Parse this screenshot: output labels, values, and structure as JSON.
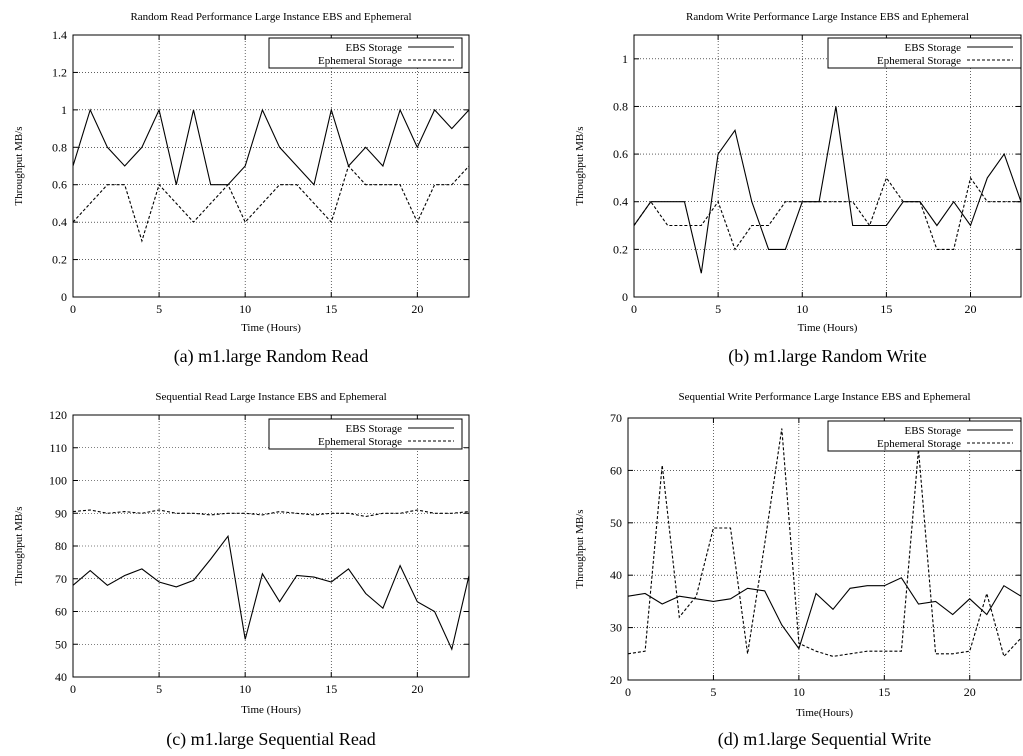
{
  "chart_data": [
    {
      "type": "line",
      "title": "Random Read Performance Large Instance EBS and Ephemeral",
      "xlabel": "Time (Hours)",
      "ylabel": "Throughput MB/s",
      "caption": "(a) m1.large Random Read",
      "xlim": [
        0,
        23
      ],
      "ylim": [
        0,
        1.4
      ],
      "xticks": [
        "0",
        "5",
        "10",
        "15",
        "20"
      ],
      "yticks": [
        "0",
        "0.2",
        "0.4",
        "0.6",
        "0.8",
        "1",
        "1.2",
        "1.4"
      ],
      "grid": true,
      "legend_position": "top-right",
      "x": [
        0,
        1,
        2,
        3,
        4,
        5,
        6,
        7,
        8,
        9,
        10,
        11,
        12,
        13,
        14,
        15,
        16,
        17,
        18,
        19,
        20,
        21,
        22,
        23
      ],
      "series": [
        {
          "name": "EBS Storage",
          "style": "solid",
          "values": [
            0.7,
            1.0,
            0.8,
            0.7,
            0.8,
            1.0,
            0.6,
            1.0,
            0.6,
            0.6,
            0.7,
            1.0,
            0.8,
            0.7,
            0.6,
            1.0,
            0.7,
            0.8,
            0.7,
            1.0,
            0.8,
            1.0,
            0.9,
            1.0
          ]
        },
        {
          "name": "Ephemeral Storage",
          "style": "dashed",
          "values": [
            0.4,
            0.5,
            0.6,
            0.6,
            0.3,
            0.6,
            0.5,
            0.4,
            0.5,
            0.6,
            0.4,
            0.5,
            0.6,
            0.6,
            0.5,
            0.4,
            0.7,
            0.6,
            0.6,
            0.6,
            0.4,
            0.6,
            0.6,
            0.7
          ]
        }
      ]
    },
    {
      "type": "line",
      "title": "Random Write Performance Large Instance EBS and Ephemeral",
      "xlabel": "Time (Hours)",
      "ylabel": "Throughput MB/s",
      "caption": "(b) m1.large Random Write",
      "xlim": [
        0,
        23
      ],
      "ylim": [
        0,
        1.1
      ],
      "xticks": [
        "0",
        "5",
        "10",
        "15",
        "20"
      ],
      "yticks": [
        "0",
        "0.2",
        "0.4",
        "0.6",
        "0.8",
        "1"
      ],
      "grid": true,
      "legend_position": "top-right",
      "x": [
        0,
        1,
        2,
        3,
        4,
        5,
        6,
        7,
        8,
        9,
        10,
        11,
        12,
        13,
        14,
        15,
        16,
        17,
        18,
        19,
        20,
        21,
        22,
        23
      ],
      "series": [
        {
          "name": "EBS Storage",
          "style": "solid",
          "values": [
            0.3,
            0.4,
            0.4,
            0.4,
            0.1,
            0.6,
            0.7,
            0.4,
            0.2,
            0.2,
            0.4,
            0.4,
            0.8,
            0.3,
            0.3,
            0.3,
            0.4,
            0.4,
            0.3,
            0.4,
            0.3,
            0.5,
            0.6,
            0.4
          ]
        },
        {
          "name": "Ephemeral Storage",
          "style": "dashed",
          "values": [
            0.3,
            0.4,
            0.3,
            0.3,
            0.3,
            0.4,
            0.2,
            0.3,
            0.3,
            0.4,
            0.4,
            0.4,
            0.4,
            0.4,
            0.3,
            0.5,
            0.4,
            0.4,
            0.2,
            0.2,
            0.5,
            0.4,
            0.4,
            0.4
          ]
        }
      ]
    },
    {
      "type": "line",
      "title": "Sequential Read Large Instance EBS and Ephemeral",
      "xlabel": "Time (Hours)",
      "ylabel": "Throughput MB/s",
      "caption": "(c) m1.large Sequential Read",
      "xlim": [
        0,
        23
      ],
      "ylim": [
        40,
        120
      ],
      "xticks": [
        "0",
        "5",
        "10",
        "15",
        "20"
      ],
      "yticks": [
        "40",
        "50",
        "60",
        "70",
        "80",
        "90",
        "100",
        "110",
        "120"
      ],
      "grid": true,
      "legend_position": "top-right",
      "x": [
        0,
        1,
        2,
        3,
        4,
        5,
        6,
        7,
        8,
        9,
        10,
        11,
        12,
        13,
        14,
        15,
        16,
        17,
        18,
        19,
        20,
        21,
        22,
        23
      ],
      "series": [
        {
          "name": "EBS Storage",
          "style": "solid",
          "values": [
            68,
            72.5,
            68,
            71,
            73,
            69,
            67.5,
            69.5,
            76,
            83,
            51.5,
            71.5,
            63,
            71,
            70.5,
            69,
            73,
            65.5,
            61,
            74,
            63,
            60,
            48.5,
            71
          ]
        },
        {
          "name": "Ephemeral Storage",
          "style": "dashed",
          "values": [
            90.5,
            91,
            90,
            90.5,
            90,
            91,
            90,
            90,
            89.5,
            90,
            90,
            89.5,
            90.5,
            90,
            89.5,
            90,
            90,
            89,
            90,
            90,
            91,
            90,
            90,
            90.5
          ]
        }
      ]
    },
    {
      "type": "line",
      "title": "Sequential Write Performance Large Instance EBS and Ephemeral",
      "xlabel": "Time(Hours)",
      "ylabel": "Throughput MB/s",
      "caption": "(d) m1.large Sequential Write",
      "xlim": [
        0,
        23
      ],
      "ylim": [
        20,
        70
      ],
      "xticks": [
        "0",
        "5",
        "10",
        "15",
        "20"
      ],
      "yticks": [
        "20",
        "30",
        "40",
        "50",
        "60",
        "70"
      ],
      "grid": true,
      "legend_position": "top-right",
      "x": [
        0,
        1,
        2,
        3,
        4,
        5,
        6,
        7,
        8,
        9,
        10,
        11,
        12,
        13,
        14,
        15,
        16,
        17,
        18,
        19,
        20,
        21,
        22,
        23
      ],
      "series": [
        {
          "name": "EBS Storage",
          "style": "solid",
          "values": [
            36,
            36.5,
            34.5,
            36,
            35.5,
            35,
            35.5,
            37.5,
            37,
            30.5,
            26,
            36.5,
            33.5,
            37.5,
            38,
            38,
            39.5,
            34.5,
            35,
            32.5,
            35.5,
            32.5,
            38,
            36
          ]
        },
        {
          "name": "Ephemeral Storage",
          "style": "dashed",
          "values": [
            25,
            25.5,
            61,
            32,
            36,
            49,
            49,
            25,
            46,
            68,
            27,
            25.5,
            24.5,
            25,
            25.5,
            25.5,
            25.5,
            64,
            25,
            25,
            25.5,
            36.5,
            24.5,
            28
          ]
        }
      ]
    }
  ]
}
